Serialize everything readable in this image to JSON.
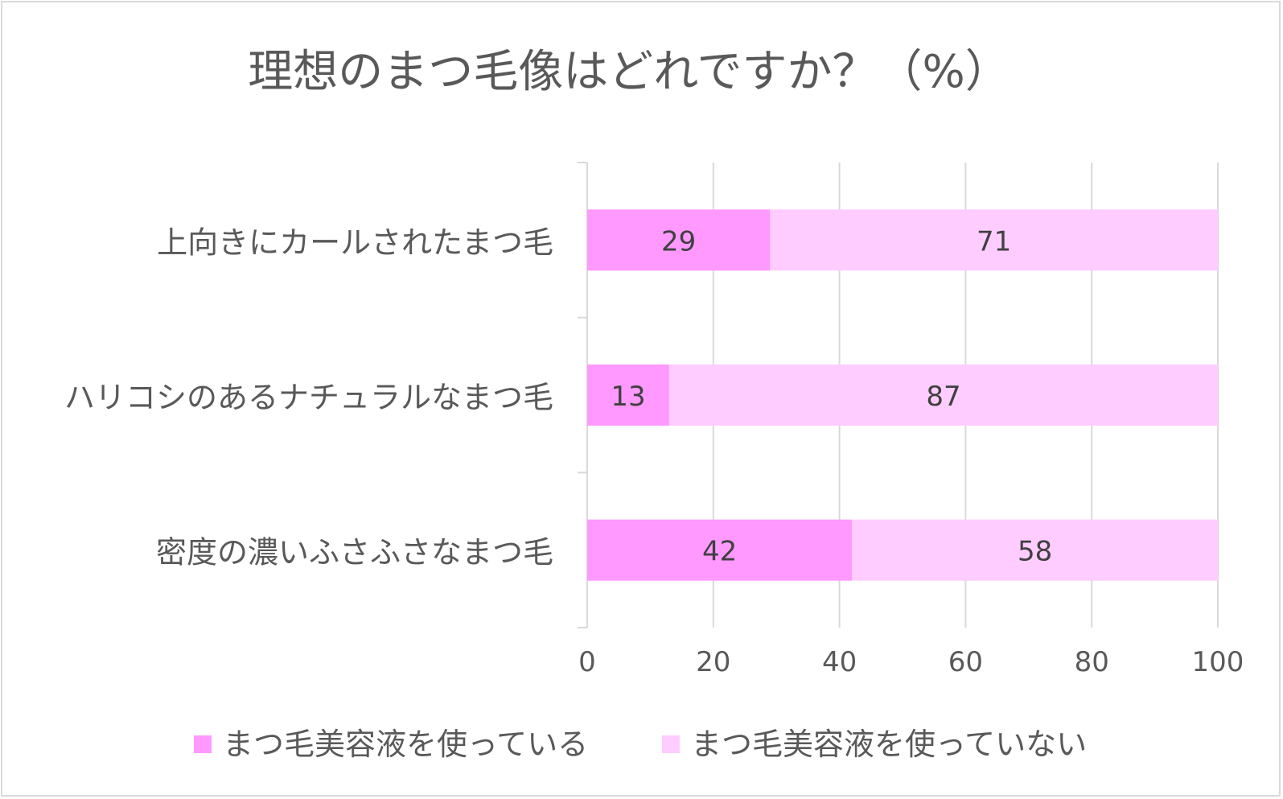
{
  "chart_data": {
    "type": "bar",
    "orientation": "horizontal",
    "stacked": true,
    "title": "理想のまつ毛像はどれですか？（%）",
    "categories": [
      "上向きにカールされたまつ毛",
      "ハリコシのあるナチュラルなまつ毛",
      "密度の濃いふさふさなまつ毛"
    ],
    "series": [
      {
        "name": "まつ毛美容液を使っている",
        "values": [
          29,
          13,
          42
        ],
        "color": "#ff99ff"
      },
      {
        "name": "まつ毛美容液を使っていない",
        "values": [
          71,
          87,
          58
        ],
        "color": "#ffccff"
      }
    ],
    "xlim": [
      0,
      100
    ],
    "x_ticks": [
      "0",
      "20",
      "40",
      "60",
      "80",
      "100"
    ],
    "grid": true,
    "legend": "bottom",
    "data_labels": true,
    "text_color": "#595959",
    "grid_color": "#d9d9d9"
  }
}
